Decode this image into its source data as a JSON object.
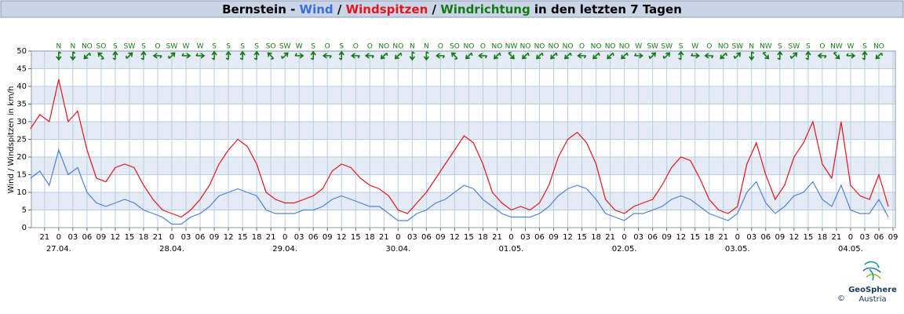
{
  "chart_data": {
    "type": "line",
    "title_parts": [
      {
        "text": "Bernstein - ",
        "color": "#000000"
      },
      {
        "text": "Wind",
        "color": "#3a6fd8"
      },
      {
        "text": " / ",
        "color": "#000000"
      },
      {
        "text": "Windspitzen",
        "color": "#e8141c"
      },
      {
        "text": " / ",
        "color": "#000000"
      },
      {
        "text": "Windrichtung",
        "color": "#137a13"
      },
      {
        "text": " in den letzten 7 Tagen",
        "color": "#000000"
      }
    ],
    "y_label": "Wind / Windspitzen in km/h",
    "xlim": [
      -5.8,
      177.5
    ],
    "ylim": [
      0,
      50
    ],
    "yticks": [
      0,
      5,
      10,
      15,
      20,
      25,
      30,
      35,
      40,
      45,
      50
    ],
    "grid": true,
    "xticks": [
      {
        "value": -3,
        "label": "21"
      },
      {
        "value": 0,
        "label": "0"
      },
      {
        "value": 3,
        "label": "03"
      },
      {
        "value": 6,
        "label": "06"
      },
      {
        "value": 9,
        "label": "09"
      },
      {
        "value": 12,
        "label": "12"
      },
      {
        "value": 15,
        "label": "15"
      },
      {
        "value": 18,
        "label": "18"
      },
      {
        "value": 21,
        "label": "21"
      },
      {
        "value": 24,
        "label": "0"
      },
      {
        "value": 27,
        "label": "03"
      },
      {
        "value": 30,
        "label": "06"
      },
      {
        "value": 33,
        "label": "09"
      },
      {
        "value": 36,
        "label": "12"
      },
      {
        "value": 39,
        "label": "15"
      },
      {
        "value": 42,
        "label": "18"
      },
      {
        "value": 45,
        "label": "21"
      },
      {
        "value": 48,
        "label": "0"
      },
      {
        "value": 51,
        "label": "03"
      },
      {
        "value": 54,
        "label": "06"
      },
      {
        "value": 57,
        "label": "09"
      },
      {
        "value": 60,
        "label": "12"
      },
      {
        "value": 63,
        "label": "15"
      },
      {
        "value": 66,
        "label": "18"
      },
      {
        "value": 69,
        "label": "21"
      },
      {
        "value": 72,
        "label": "0"
      },
      {
        "value": 75,
        "label": "03"
      },
      {
        "value": 78,
        "label": "06"
      },
      {
        "value": 81,
        "label": "09"
      },
      {
        "value": 84,
        "label": "12"
      },
      {
        "value": 87,
        "label": "15"
      },
      {
        "value": 90,
        "label": "18"
      },
      {
        "value": 93,
        "label": "21"
      },
      {
        "value": 96,
        "label": "0"
      },
      {
        "value": 99,
        "label": "03"
      },
      {
        "value": 102,
        "label": "06"
      },
      {
        "value": 105,
        "label": "09"
      },
      {
        "value": 108,
        "label": "12"
      },
      {
        "value": 111,
        "label": "15"
      },
      {
        "value": 114,
        "label": "18"
      },
      {
        "value": 117,
        "label": "21"
      },
      {
        "value": 120,
        "label": "0"
      },
      {
        "value": 123,
        "label": "03"
      },
      {
        "value": 126,
        "label": "06"
      },
      {
        "value": 129,
        "label": "09"
      },
      {
        "value": 132,
        "label": "12"
      },
      {
        "value": 135,
        "label": "15"
      },
      {
        "value": 138,
        "label": "18"
      },
      {
        "value": 141,
        "label": "21"
      },
      {
        "value": 144,
        "label": "0"
      },
      {
        "value": 147,
        "label": "03"
      },
      {
        "value": 150,
        "label": "06"
      },
      {
        "value": 153,
        "label": "09"
      },
      {
        "value": 156,
        "label": "12"
      },
      {
        "value": 159,
        "label": "15"
      },
      {
        "value": 162,
        "label": "18"
      },
      {
        "value": 165,
        "label": "21"
      },
      {
        "value": 168,
        "label": "0"
      },
      {
        "value": 171,
        "label": "03"
      },
      {
        "value": 174,
        "label": "06"
      },
      {
        "value": 177,
        "label": "09"
      }
    ],
    "day_labels": [
      {
        "value": 0,
        "label": "27.04."
      },
      {
        "value": 24,
        "label": "28.04."
      },
      {
        "value": 48,
        "label": "29.04."
      },
      {
        "value": 72,
        "label": "30.04."
      },
      {
        "value": 96,
        "label": "01.05."
      },
      {
        "value": 120,
        "label": "02.05."
      },
      {
        "value": 144,
        "label": "03.05."
      },
      {
        "value": 168,
        "label": "04.05."
      }
    ],
    "x": [
      -6,
      -4,
      -2,
      0,
      2,
      4,
      6,
      8,
      10,
      12,
      14,
      16,
      18,
      20,
      22,
      24,
      26,
      28,
      30,
      32,
      34,
      36,
      38,
      40,
      42,
      44,
      46,
      48,
      50,
      52,
      54,
      56,
      58,
      60,
      62,
      64,
      66,
      68,
      70,
      72,
      74,
      76,
      78,
      80,
      82,
      84,
      86,
      88,
      90,
      92,
      94,
      96,
      98,
      100,
      102,
      104,
      106,
      108,
      110,
      112,
      114,
      116,
      118,
      120,
      122,
      124,
      126,
      128,
      130,
      132,
      134,
      136,
      138,
      140,
      142,
      144,
      146,
      148,
      150,
      152,
      154,
      156,
      158,
      160,
      162,
      164,
      166,
      168,
      170,
      172,
      174,
      176
    ],
    "series": [
      {
        "name": "Windspitzen",
        "color": "#e8141c",
        "values": [
          28,
          32,
          30,
          42,
          30,
          33,
          22,
          14,
          13,
          17,
          18,
          17,
          12,
          8,
          5,
          4,
          3,
          5,
          8,
          12,
          18,
          22,
          25,
          23,
          18,
          10,
          8,
          7,
          7,
          8,
          9,
          11,
          16,
          18,
          17,
          14,
          12,
          11,
          9,
          5,
          4,
          7,
          10,
          14,
          18,
          22,
          26,
          24,
          18,
          10,
          7,
          5,
          6,
          5,
          7,
          12,
          20,
          25,
          27,
          24,
          18,
          8,
          5,
          4,
          6,
          7,
          8,
          12,
          17,
          20,
          19,
          14,
          8,
          5,
          4,
          6,
          18,
          24,
          15,
          8,
          12,
          20,
          24,
          30,
          18,
          14,
          30,
          12,
          9,
          8,
          15,
          6
        ]
      },
      {
        "name": "Wind",
        "color": "#4f80e0",
        "values": [
          14,
          16,
          12,
          22,
          15,
          17,
          10,
          7,
          6,
          7,
          8,
          7,
          5,
          4,
          3,
          1,
          1,
          3,
          4,
          6,
          9,
          10,
          11,
          10,
          9,
          5,
          4,
          4,
          4,
          5,
          5,
          6,
          8,
          9,
          8,
          7,
          6,
          6,
          4,
          2,
          2,
          4,
          5,
          7,
          8,
          10,
          12,
          11,
          8,
          6,
          4,
          3,
          3,
          3,
          4,
          6,
          9,
          11,
          12,
          11,
          8,
          4,
          3,
          2,
          4,
          4,
          5,
          6,
          8,
          9,
          8,
          6,
          4,
          3,
          2,
          4,
          10,
          13,
          7,
          4,
          6,
          9,
          10,
          13,
          8,
          6,
          12,
          5,
          4,
          4,
          8,
          3
        ]
      }
    ],
    "wind_direction": {
      "color": "#137a13",
      "x": [
        0,
        3,
        6,
        9,
        12,
        15,
        18,
        21,
        24,
        27,
        30,
        33,
        36,
        39,
        42,
        45,
        48,
        51,
        54,
        57,
        60,
        63,
        66,
        69,
        72,
        75,
        78,
        81,
        84,
        87,
        90,
        93,
        96,
        99,
        102,
        105,
        108,
        111,
        114,
        117,
        120,
        123,
        126,
        129,
        132,
        135,
        138,
        141,
        144,
        147,
        150,
        153,
        156,
        159,
        162,
        165,
        168,
        171,
        174
      ],
      "labels": [
        "N",
        "N",
        "NO",
        "SO",
        "S",
        "SW",
        "S",
        "O",
        "SW",
        "W",
        "W",
        "S",
        "S",
        "S",
        "S",
        "SO",
        "SW",
        "W",
        "S",
        "O",
        "S",
        "O",
        "O",
        "NO",
        "NO",
        "N",
        "N",
        "O",
        "SO",
        "NO",
        "O",
        "NO",
        "NW",
        "NO",
        "NO",
        "NO",
        "NO",
        "O",
        "NO",
        "NO",
        "NO",
        "W",
        "SW",
        "SW",
        "S",
        "W",
        "O",
        "NO",
        "SW",
        "N",
        "NW",
        "S",
        "SW",
        "S",
        "O",
        "NW",
        "W",
        "S",
        "NO"
      ],
      "degrees": [
        0,
        0,
        45,
        135,
        180,
        225,
        180,
        90,
        225,
        270,
        270,
        180,
        180,
        180,
        180,
        135,
        225,
        270,
        180,
        90,
        180,
        90,
        90,
        45,
        45,
        0,
        0,
        90,
        135,
        45,
        90,
        45,
        315,
        45,
        45,
        45,
        45,
        90,
        45,
        45,
        45,
        270,
        225,
        225,
        180,
        270,
        90,
        45,
        225,
        0,
        315,
        180,
        225,
        180,
        90,
        315,
        270,
        180,
        45
      ]
    },
    "footer": {
      "brand": "GeoSphere",
      "copyright": "©",
      "country": "Austria"
    }
  }
}
